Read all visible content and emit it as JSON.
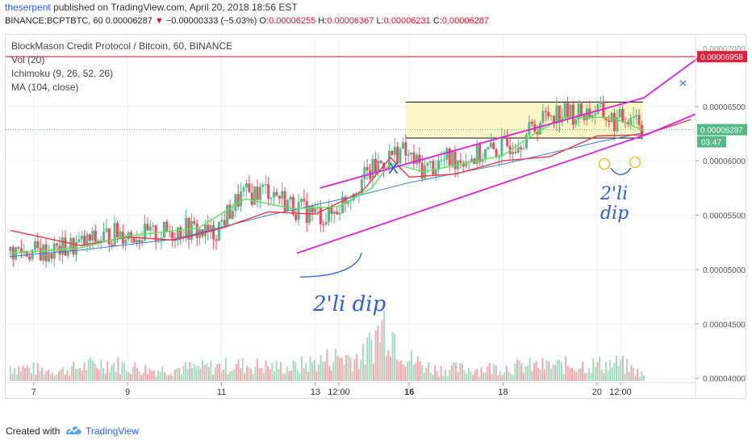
{
  "header": {
    "author": "theserpent",
    "published_text": "published on TradingView.com, April 20, 2018 18:56 EST",
    "symbol_line": "BINANCE:BCPTBTC, 60",
    "open_label": "0.00006287",
    "arrow": "▼",
    "change_text": "−0.00000333 (−5.03%)",
    "o_key": "O:",
    "o_val": "0.00006255",
    "h_key": "H:",
    "h_val": "0.00006367",
    "l_key": "L:",
    "l_val": "0.00006231",
    "c_key": "C:",
    "c_val": "0.00006287"
  },
  "legend": {
    "title": "BlockMason Credit Protocol / Bitcoin, 60, BINANCE",
    "vol": "Vol (20)",
    "ichimoku": "Ichimoku (9, 26, 52, 26)",
    "ma": "MA (104, close)"
  },
  "annotations": {
    "dip1": "2'li dip",
    "dip2_line1": "2'li",
    "dip2_line2": "dip",
    "x_mark": "X"
  },
  "footer": {
    "created_with": "Created with",
    "brand": "TradingView"
  },
  "colors": {
    "up": "#53b987",
    "down": "#eb4d5c",
    "volume_up": "#a3dcc2",
    "volume_down": "#f3a7ae",
    "channel": "#e020e0",
    "resistance": "#e01f3a",
    "kijun": "#e83a4a",
    "tenkan": "#5fe35f",
    "ma": "#3d78d8",
    "annotation": "#2b5fd8",
    "box_fill": "#fbf6c8"
  },
  "chart_data": {
    "type": "candlestick",
    "title": "BlockMason Credit Protocol / Bitcoin, 60, BINANCE",
    "xlabel": "",
    "ylabel": "",
    "y_ticks": [
      "0.00006500",
      "0.00006000",
      "0.00005500",
      "0.00005000",
      "0.00004500",
      "0.00004000"
    ],
    "y_tick_values": [
      6.5e-05,
      6e-05,
      5.5e-05,
      5e-05,
      4.5e-05,
      4e-05
    ],
    "ylim": [
      3.96e-05,
      7.16e-05
    ],
    "x_ticks": [
      "7",
      "9",
      "11",
      "13",
      "12:00",
      "16",
      "18",
      "20",
      "12:00"
    ],
    "x_tick_positions": [
      0,
      2,
      4,
      6,
      6.5,
      8,
      10,
      12,
      12.5
    ],
    "xlim": [
      -0.6,
      14.1
    ],
    "price_labels": {
      "resistance": "0.00006958",
      "last": "0.00006287",
      "countdown": "03:47",
      "hidden": "0.00007000"
    },
    "resistance_level": 6.958e-05,
    "last_price": 6.287e-05,
    "box": {
      "x": [
        7.92,
        12.98
      ],
      "top": 6.54e-05,
      "bottom": 6.21e-05
    },
    "channel_upper": [
      [
        6.1,
        5.75e-05
      ],
      [
        13.0,
        6.58e-05
      ],
      [
        14.2,
        6.96e-05
      ]
    ],
    "channel_lower": [
      [
        5.6,
        5.15e-05
      ],
      [
        13.1,
        6.25e-05
      ],
      [
        14.1,
        6.43e-05
      ]
    ],
    "series": [
      {
        "name": "Price",
        "x": [
          -0.5,
          0.3,
          1.0,
          1.8,
          2.5,
          3.2,
          3.8,
          4.4,
          5.0,
          5.6,
          6.3,
          6.9,
          7.4,
          7.8,
          8.3,
          8.8,
          9.4,
          10.0,
          10.5,
          11.0,
          11.5,
          12.0,
          12.4,
          12.8,
          13.0
        ],
        "close": [
          5.17e-05,
          5.16e-05,
          5.23e-05,
          5.34e-05,
          5.31e-05,
          5.38e-05,
          5.32e-05,
          5.67e-05,
          5.74e-05,
          5.56e-05,
          5.48e-05,
          5.79e-05,
          5.98e-05,
          6.1e-05,
          5.92e-05,
          6.01e-05,
          6.04e-05,
          6.12e-05,
          6.24e-05,
          6.45e-05,
          6.43e-05,
          6.46e-05,
          6.35e-05,
          6.45e-05,
          6.29e-05
        ]
      },
      {
        "name": "Volume",
        "x": [
          -0.5,
          0.5,
          1.5,
          2.5,
          3.5,
          4.5,
          5.5,
          6.5,
          7.0,
          7.5,
          8.0,
          8.5,
          9.5,
          10.5,
          11.5,
          12.5,
          13.0
        ],
        "values": [
          24,
          16,
          30,
          18,
          22,
          26,
          22,
          40,
          38,
          100,
          36,
          20,
          20,
          24,
          26,
          28,
          10
        ]
      }
    ],
    "tenkan": [
      [
        -0.5,
        5.15e-05
      ],
      [
        1.0,
        5.2e-05
      ],
      [
        2.0,
        5.31e-05
      ],
      [
        3.5,
        5.38e-05
      ],
      [
        4.5,
        5.65e-05
      ],
      [
        5.5,
        5.56e-05
      ],
      [
        6.5,
        5.58e-05
      ],
      [
        7.2,
        5.75e-05
      ],
      [
        7.6,
        5.98e-05
      ],
      [
        8.3,
        5.9e-05
      ],
      [
        9.0,
        5.96e-05
      ],
      [
        10.0,
        6.05e-05
      ],
      [
        10.7,
        6.26e-05
      ],
      [
        11.3,
        6.4e-05
      ],
      [
        12.3,
        6.4e-05
      ],
      [
        13.0,
        6.28e-05
      ]
    ],
    "kijun": [
      [
        -0.5,
        5.36e-05
      ],
      [
        1.0,
        5.22e-05
      ],
      [
        2.0,
        5.3e-05
      ],
      [
        3.0,
        5.27e-05
      ],
      [
        4.0,
        5.38e-05
      ],
      [
        5.0,
        5.53e-05
      ],
      [
        6.0,
        5.51e-05
      ],
      [
        7.0,
        5.72e-05
      ],
      [
        7.6,
        6.03e-05
      ],
      [
        8.0,
        5.85e-05
      ],
      [
        9.0,
        5.88e-05
      ],
      [
        10.0,
        6e-05
      ],
      [
        11.0,
        6.04e-05
      ],
      [
        12.0,
        6.23e-05
      ],
      [
        13.0,
        6.24e-05
      ],
      [
        14.0,
        6.38e-05
      ]
    ],
    "ma": [
      [
        -0.5,
        5.12e-05
      ],
      [
        1.0,
        5.18e-05
      ],
      [
        3.0,
        5.28e-05
      ],
      [
        5.0,
        5.5e-05
      ],
      [
        7.0,
        5.69e-05
      ],
      [
        8.0,
        5.8e-05
      ],
      [
        10.0,
        5.97e-05
      ],
      [
        12.0,
        6.17e-05
      ],
      [
        13.0,
        6.26e-05
      ]
    ]
  }
}
